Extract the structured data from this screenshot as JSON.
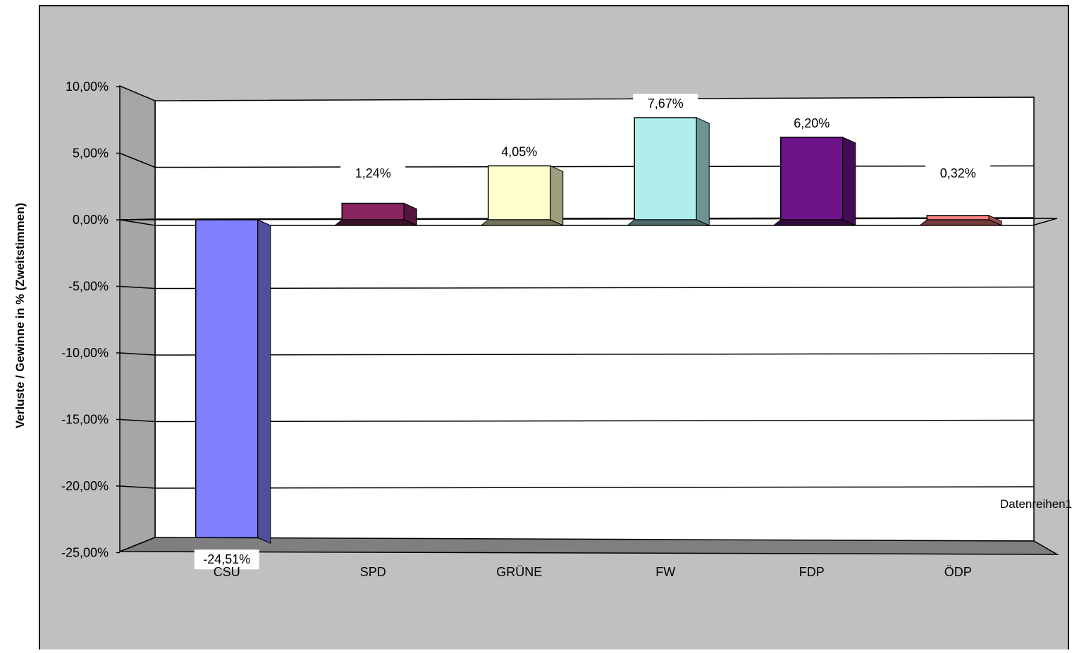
{
  "chart_data": {
    "type": "bar",
    "ylabel": "Verluste / Gewinne in % (Zweitstimmen)",
    "categories": [
      "CSU",
      "SPD",
      "GRÜNE",
      "FW",
      "FDP",
      "ÖDP"
    ],
    "series": [
      {
        "name": "Datenreihen1",
        "values": [
          -24.51,
          1.24,
          4.05,
          7.67,
          6.2,
          0.32
        ],
        "labels": [
          "-24,51%",
          "1,24%",
          "4,05%",
          "7,67%",
          "6,20%",
          "0,32%"
        ],
        "colors": [
          "#8080ff",
          "#882460",
          "#ffffcc",
          "#b0eeee",
          "#6c1488",
          "#ff8080"
        ]
      }
    ],
    "ylim": [
      -25,
      10
    ],
    "yticks": [
      10,
      5,
      0,
      -5,
      -10,
      -15,
      -20,
      -25
    ],
    "ytick_labels": [
      "10,00%",
      "5,00%",
      "0,00%",
      "-5,00%",
      "-10,00%",
      "-15,00%",
      "-20,00%",
      "-25,00%"
    ],
    "grid": true,
    "legend": {
      "entries": [
        "Datenreihen1"
      ],
      "position": "right"
    },
    "colors": {
      "chart_area": "#c0c0c0",
      "plot_wall": "#ffffff",
      "side_wall": "#a6a6a6",
      "floor": "#7f7f7f"
    }
  }
}
